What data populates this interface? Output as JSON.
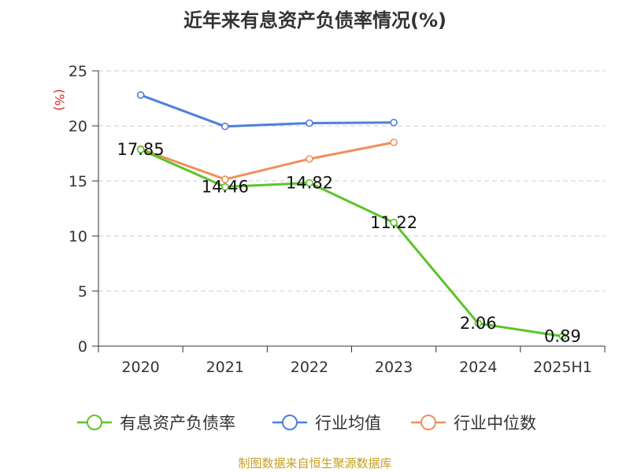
{
  "chart_data": {
    "type": "line",
    "title": "近年来有息资产负债率情况(%)",
    "ylabel": "(%)",
    "xlabel": "",
    "categories": [
      "2020",
      "2021",
      "2022",
      "2023",
      "2024",
      "2025H1"
    ],
    "ylim": [
      0,
      25
    ],
    "yticks": [
      0,
      5,
      10,
      15,
      20,
      25
    ],
    "grid": "horizontal dashed",
    "legend_position": "bottom",
    "series": [
      {
        "name": "有息资产负债率",
        "color": "#5cc42a",
        "values": [
          17.85,
          14.46,
          14.82,
          11.22,
          2.06,
          0.89
        ],
        "labels": [
          "17.85",
          "14.46",
          "14.82",
          "11.22",
          "2.06",
          "0.89"
        ]
      },
      {
        "name": "行业均值",
        "color": "#4e7fdb",
        "values": [
          22.8,
          19.95,
          20.25,
          20.3,
          null,
          null
        ]
      },
      {
        "name": "行业中位数",
        "color": "#f08f5a",
        "values": [
          17.9,
          15.15,
          17.0,
          18.5,
          null,
          null
        ]
      }
    ]
  },
  "source": "制图数据来自恒生聚源数据库"
}
